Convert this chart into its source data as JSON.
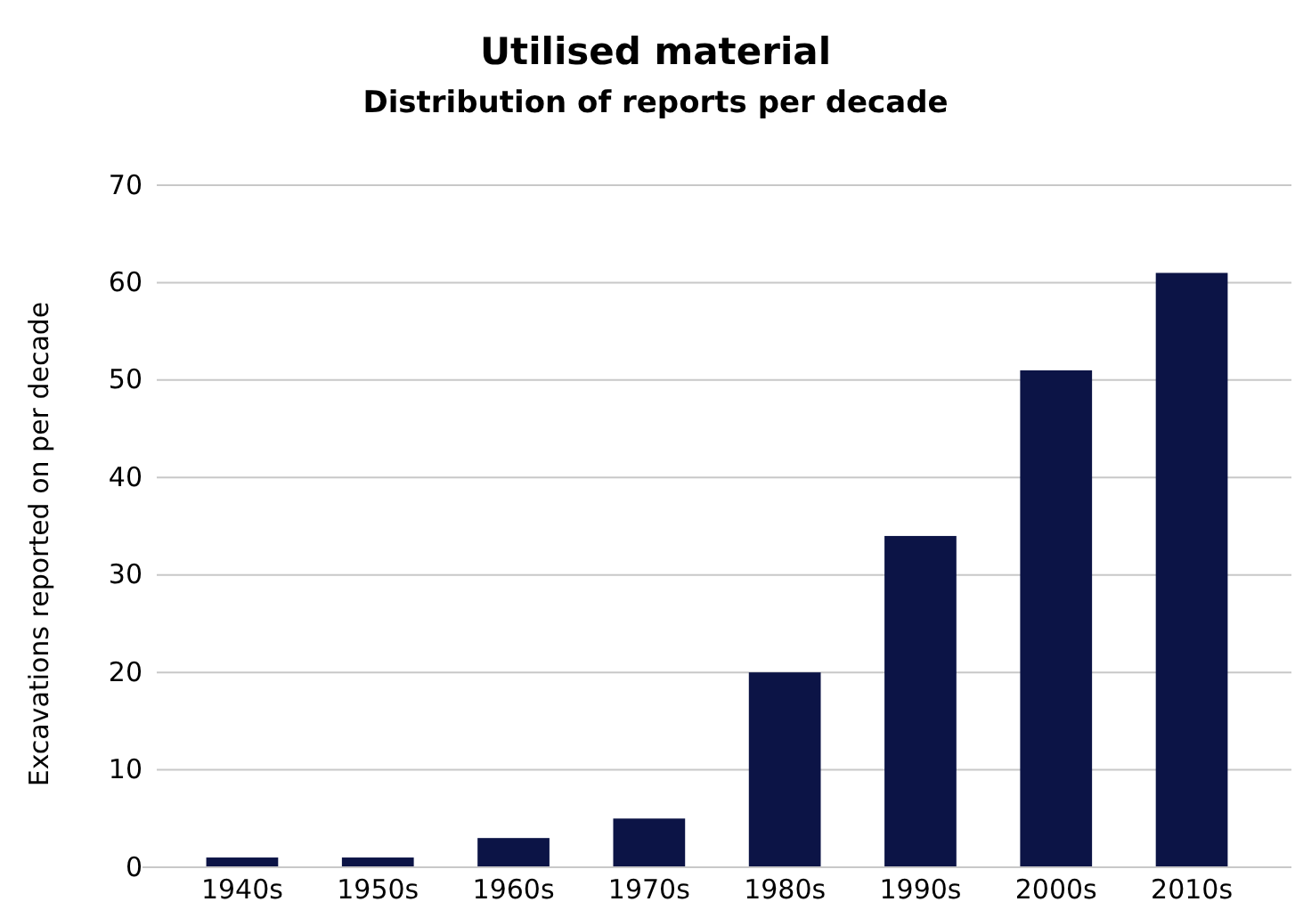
{
  "chart_data": {
    "type": "bar",
    "title": "Utilised material",
    "subtitle": "Distribution of reports per decade",
    "ylabel": "Excavations reported on per decade",
    "categories": [
      "1940s",
      "1950s",
      "1960s",
      "1970s",
      "1980s",
      "1990s",
      "2000s",
      "2010s"
    ],
    "values": [
      1,
      1,
      3,
      5,
      20,
      34,
      51,
      61
    ],
    "color": "#0c1446",
    "ylim": [
      0,
      70
    ],
    "yticks": [
      0,
      10,
      20,
      30,
      40,
      50,
      60,
      70
    ],
    "grid": "y"
  }
}
